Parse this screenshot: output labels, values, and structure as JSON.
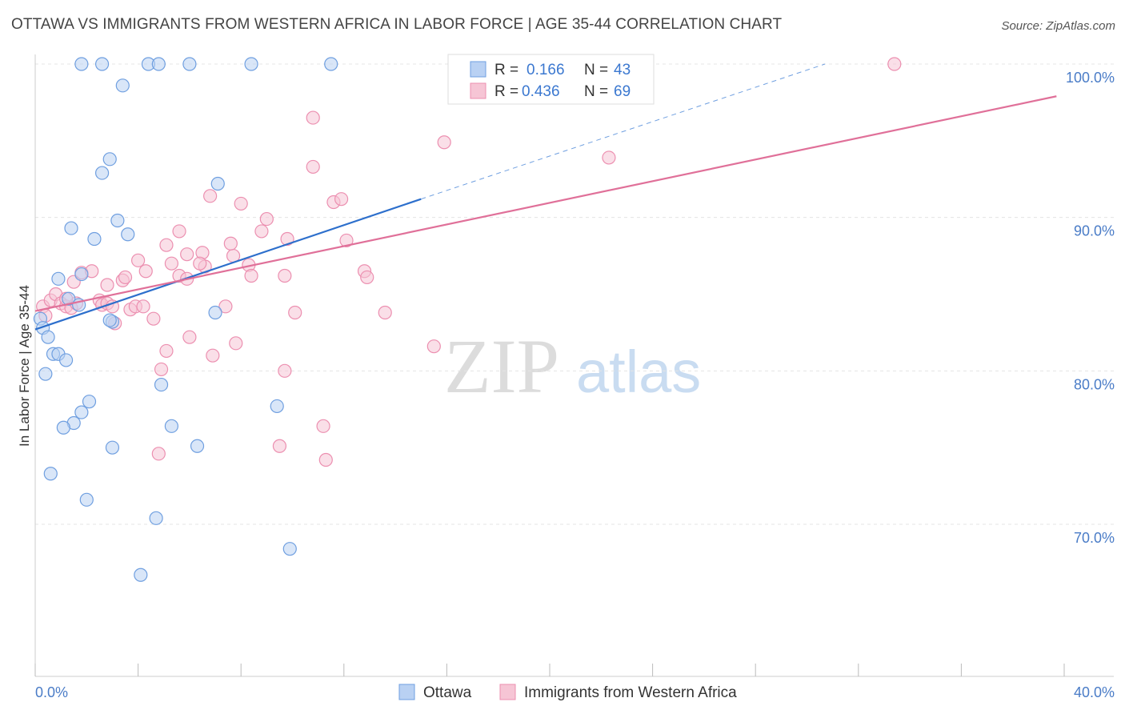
{
  "title": "OTTAWA VS IMMIGRANTS FROM WESTERN AFRICA IN LABOR FORCE | AGE 35-44 CORRELATION CHART",
  "source": "Source: ZipAtlas.com",
  "watermark": {
    "zip": "ZIP",
    "atlas": "atlas"
  },
  "colors": {
    "ottawa": "#6f9fe0",
    "ottawa_fill": "#b9d1f3",
    "ottawa_line": "#2d6fcc",
    "immigrants": "#ec8fb0",
    "immigrants_fill": "#f6c5d5",
    "immigrants_line": "#e07099"
  },
  "legend": {
    "r_label": "R =",
    "n_label": "N =",
    "rows": [
      {
        "r": "0.166",
        "n": "43"
      },
      {
        "r": "0.436",
        "n": "69"
      }
    ]
  },
  "chart_data": {
    "type": "scatter",
    "title": "OTTAWA VS IMMIGRANTS FROM WESTERN AFRICA IN LABOR FORCE | AGE 35-44 CORRELATION CHART",
    "xlabel": "",
    "ylabel": "In Labor Force | Age 35-44",
    "xlim": [
      0,
      40
    ],
    "ylim": [
      61,
      101
    ],
    "x_tick_labels": [
      "0.0%",
      "40.0%"
    ],
    "y_ticks": [
      70,
      80,
      90,
      100
    ],
    "y_tick_labels": [
      "70.0%",
      "80.0%",
      "90.0%",
      "100.0%"
    ],
    "grid": true,
    "legend_placement": "top-center",
    "series": [
      {
        "name": "Ottawa",
        "trend": {
          "x0": 0,
          "y0": 82.7,
          "x1": 15,
          "y1": 91.2,
          "dashed_to_x": 30.7,
          "dashed_to_y": 100
        },
        "points": [
          [
            0.2,
            83.4
          ],
          [
            0.3,
            82.8
          ],
          [
            0.5,
            82.2
          ],
          [
            0.4,
            79.8
          ],
          [
            0.7,
            81.1
          ],
          [
            0.9,
            81.1
          ],
          [
            1.2,
            80.7
          ],
          [
            0.9,
            86.0
          ],
          [
            1.3,
            84.7
          ],
          [
            1.7,
            84.3
          ],
          [
            1.4,
            89.3
          ],
          [
            1.8,
            77.3
          ],
          [
            1.5,
            76.6
          ],
          [
            1.1,
            76.3
          ],
          [
            2.1,
            78.0
          ],
          [
            0.6,
            73.3
          ],
          [
            2.0,
            71.6
          ],
          [
            2.3,
            88.6
          ],
          [
            1.8,
            86.3
          ],
          [
            2.6,
            92.9
          ],
          [
            2.9,
            93.8
          ],
          [
            3.2,
            89.8
          ],
          [
            3.6,
            88.9
          ],
          [
            3.0,
            83.2
          ],
          [
            3.0,
            75.0
          ],
          [
            3.4,
            98.6
          ],
          [
            1.8,
            100
          ],
          [
            2.6,
            100
          ],
          [
            4.4,
            100
          ],
          [
            4.8,
            100
          ],
          [
            6.0,
            100
          ],
          [
            8.4,
            100
          ],
          [
            11.5,
            100
          ],
          [
            4.9,
            79.1
          ],
          [
            5.3,
            76.4
          ],
          [
            6.3,
            75.1
          ],
          [
            7.0,
            83.8
          ],
          [
            7.1,
            92.2
          ],
          [
            9.4,
            77.7
          ],
          [
            4.7,
            70.4
          ],
          [
            4.1,
            66.7
          ],
          [
            9.9,
            68.4
          ],
          [
            2.9,
            83.3
          ]
        ]
      },
      {
        "name": "Immigrants from Western Africa",
        "trend": {
          "x0": 0,
          "y0": 83.9,
          "x1": 39.7,
          "y1": 97.9
        },
        "points": [
          [
            0.3,
            84.2
          ],
          [
            0.4,
            83.6
          ],
          [
            0.6,
            84.6
          ],
          [
            0.8,
            85.0
          ],
          [
            1.0,
            84.4
          ],
          [
            1.2,
            84.2
          ],
          [
            1.4,
            84.1
          ],
          [
            1.6,
            84.4
          ],
          [
            1.5,
            85.8
          ],
          [
            1.8,
            86.4
          ],
          [
            2.2,
            86.5
          ],
          [
            2.5,
            84.6
          ],
          [
            2.6,
            84.3
          ],
          [
            2.8,
            84.4
          ],
          [
            3.0,
            84.2
          ],
          [
            3.1,
            83.1
          ],
          [
            2.8,
            85.6
          ],
          [
            3.4,
            85.9
          ],
          [
            3.5,
            86.1
          ],
          [
            3.7,
            84.0
          ],
          [
            3.9,
            84.2
          ],
          [
            4.0,
            87.2
          ],
          [
            4.3,
            86.5
          ],
          [
            4.2,
            84.2
          ],
          [
            4.6,
            83.4
          ],
          [
            5.1,
            88.2
          ],
          [
            5.3,
            87.0
          ],
          [
            5.6,
            89.1
          ],
          [
            5.9,
            87.6
          ],
          [
            5.6,
            86.2
          ],
          [
            5.9,
            86.0
          ],
          [
            6.5,
            87.7
          ],
          [
            6.6,
            86.8
          ],
          [
            6.4,
            87.0
          ],
          [
            6.8,
            91.4
          ],
          [
            7.7,
            87.5
          ],
          [
            7.6,
            88.3
          ],
          [
            8.0,
            90.9
          ],
          [
            8.3,
            86.9
          ],
          [
            8.4,
            86.2
          ],
          [
            8.8,
            89.1
          ],
          [
            9.0,
            89.9
          ],
          [
            9.7,
            86.2
          ],
          [
            9.8,
            88.6
          ],
          [
            10.1,
            83.8
          ],
          [
            10.8,
            96.5
          ],
          [
            10.8,
            93.3
          ],
          [
            11.6,
            91.0
          ],
          [
            11.9,
            91.2
          ],
          [
            12.1,
            88.5
          ],
          [
            12.8,
            86.5
          ],
          [
            12.9,
            86.1
          ],
          [
            13.6,
            83.8
          ],
          [
            15.5,
            81.6
          ],
          [
            15.9,
            94.9
          ],
          [
            22.3,
            93.9
          ],
          [
            33.4,
            100
          ],
          [
            5.1,
            81.3
          ],
          [
            4.9,
            80.1
          ],
          [
            6.0,
            82.2
          ],
          [
            6.9,
            81.0
          ],
          [
            7.8,
            81.8
          ],
          [
            9.7,
            80.0
          ],
          [
            11.2,
            76.4
          ],
          [
            11.3,
            74.2
          ],
          [
            9.5,
            75.1
          ],
          [
            4.8,
            74.6
          ],
          [
            7.4,
            84.2
          ],
          [
            1.2,
            84.7
          ]
        ]
      }
    ]
  },
  "bottom_legend": [
    {
      "label": "Ottawa"
    },
    {
      "label": "Immigrants from Western Africa"
    }
  ]
}
